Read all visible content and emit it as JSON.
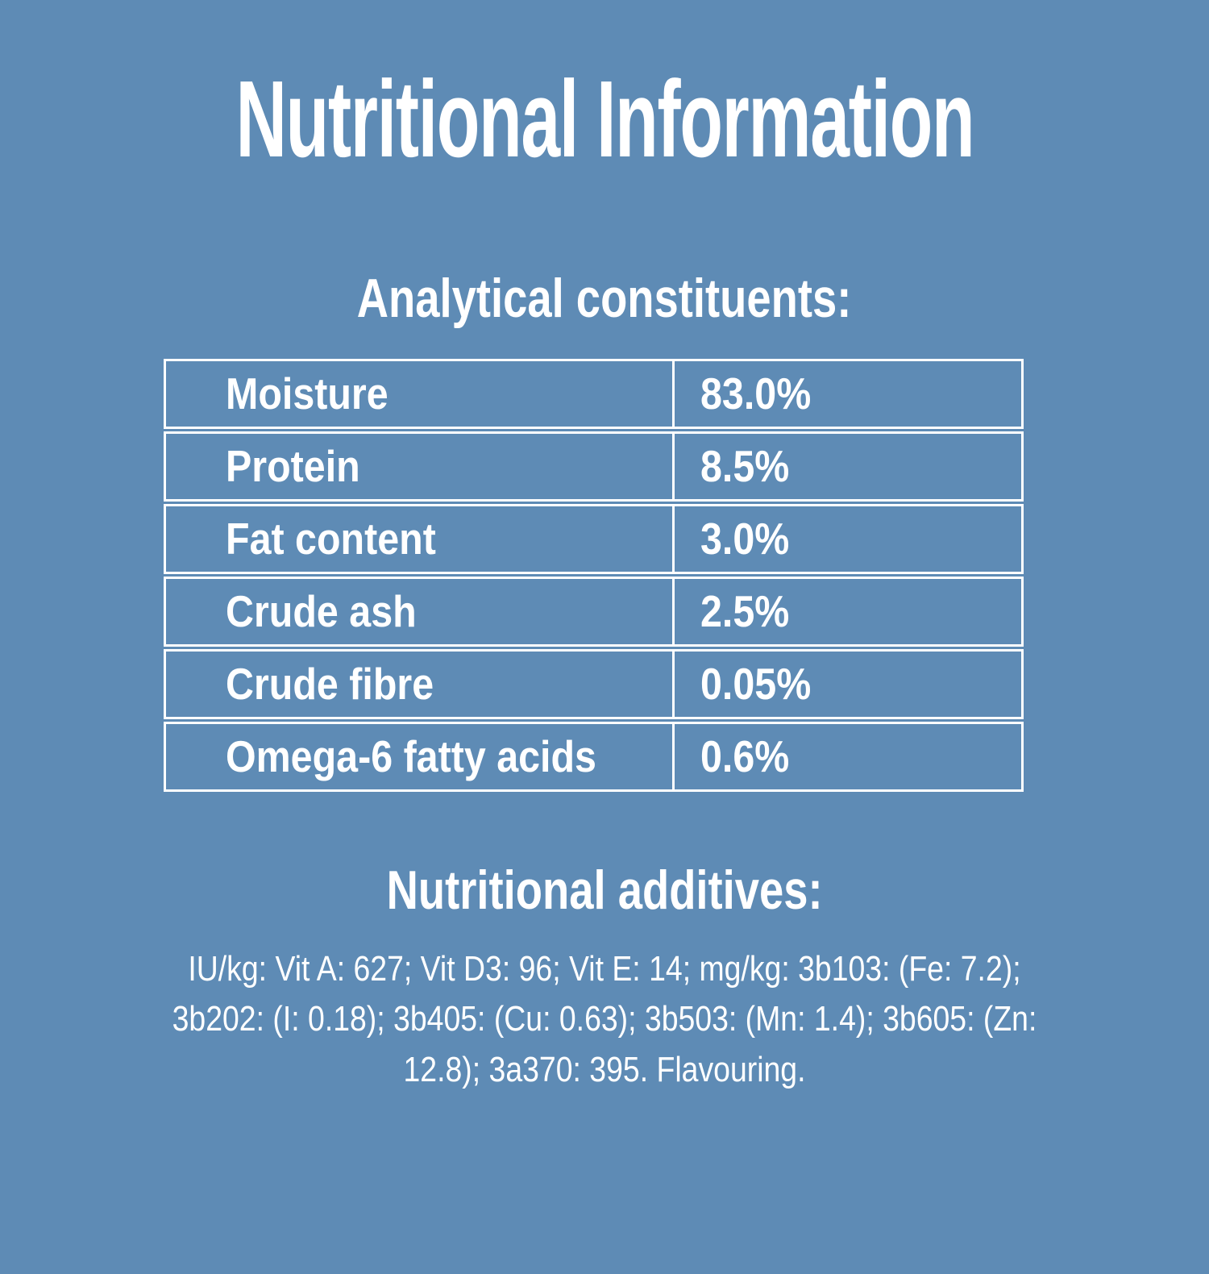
{
  "page": {
    "background_color": "#5E8BB5",
    "text_color": "#FFFFFF",
    "table_border_color": "#FFFFFF"
  },
  "title": "Nutritional Information",
  "analytical_section": {
    "heading": "Analytical constituents:",
    "table": {
      "rows": [
        {
          "label": "Moisture",
          "value": "83.0%"
        },
        {
          "label": "Protein",
          "value": "8.5%"
        },
        {
          "label": "Fat content",
          "value": "3.0%"
        },
        {
          "label": "Crude ash",
          "value": "2.5%"
        },
        {
          "label": "Crude fibre",
          "value": "0.05%"
        },
        {
          "label": "Omega-6 fatty acids",
          "value": "0.6%"
        }
      ]
    }
  },
  "additives_section": {
    "heading": "Nutritional additives:",
    "text": "IU/kg: Vit A: 627; Vit D3: 96; Vit E: 14; mg/kg: 3b103: (Fe: 7.2); 3b202: (I: 0.18); 3b405: (Cu: 0.63); 3b503: (Mn: 1.4); 3b605: (Zn: 12.8); 3a370: 395. Flavouring."
  }
}
